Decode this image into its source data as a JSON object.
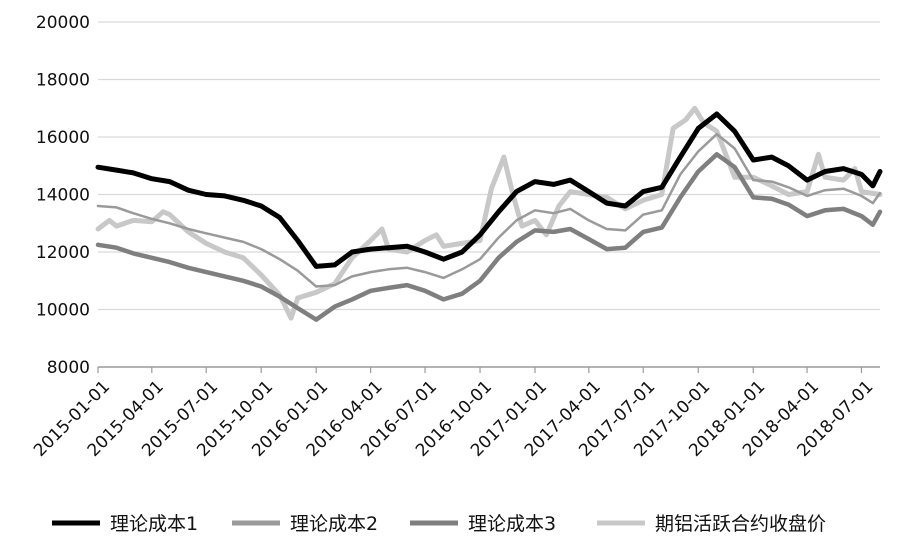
{
  "chart_data": {
    "type": "line",
    "title": "",
    "xlabel": "",
    "ylabel": "",
    "ylim": [
      8000,
      20000
    ],
    "yticks": [
      8000,
      10000,
      12000,
      14000,
      16000,
      18000,
      20000
    ],
    "xlim": [
      "2015-01-01",
      "2018-08-01"
    ],
    "xticks": [
      "2015-01-01",
      "2015-04-01",
      "2015-07-01",
      "2015-10-01",
      "2016-01-01",
      "2016-04-01",
      "2016-07-01",
      "2016-10-01",
      "2017-01-01",
      "2017-04-01",
      "2017-07-01",
      "2017-10-01",
      "2018-01-01",
      "2018-04-01",
      "2018-07-01"
    ],
    "grid": "horizontal",
    "legend_position": "bottom",
    "series": [
      {
        "name": "理论成本1",
        "color": "#000000",
        "points": [
          [
            "2015-01-01",
            14950
          ],
          [
            "2015-02-01",
            14850
          ],
          [
            "2015-03-01",
            14750
          ],
          [
            "2015-04-01",
            14550
          ],
          [
            "2015-05-01",
            14450
          ],
          [
            "2015-06-01",
            14150
          ],
          [
            "2015-07-01",
            14000
          ],
          [
            "2015-08-01",
            13950
          ],
          [
            "2015-09-01",
            13800
          ],
          [
            "2015-10-01",
            13600
          ],
          [
            "2015-11-01",
            13200
          ],
          [
            "2015-12-01",
            12400
          ],
          [
            "2016-01-01",
            11500
          ],
          [
            "2016-02-01",
            11550
          ],
          [
            "2016-03-01",
            12000
          ],
          [
            "2016-04-01",
            12100
          ],
          [
            "2016-05-01",
            12150
          ],
          [
            "2016-06-01",
            12200
          ],
          [
            "2016-07-01",
            12000
          ],
          [
            "2016-08-01",
            11750
          ],
          [
            "2016-09-01",
            12000
          ],
          [
            "2016-10-01",
            12600
          ],
          [
            "2016-11-01",
            13400
          ],
          [
            "2016-12-01",
            14100
          ],
          [
            "2017-01-01",
            14450
          ],
          [
            "2017-02-01",
            14350
          ],
          [
            "2017-03-01",
            14500
          ],
          [
            "2017-04-01",
            14100
          ],
          [
            "2017-05-01",
            13700
          ],
          [
            "2017-06-01",
            13600
          ],
          [
            "2017-07-01",
            14100
          ],
          [
            "2017-08-01",
            14250
          ],
          [
            "2017-09-01",
            15300
          ],
          [
            "2017-10-01",
            16300
          ],
          [
            "2017-11-01",
            16800
          ],
          [
            "2017-12-01",
            16200
          ],
          [
            "2018-01-01",
            15200
          ],
          [
            "2018-02-01",
            15300
          ],
          [
            "2018-03-01",
            15000
          ],
          [
            "2018-04-01",
            14500
          ],
          [
            "2018-05-01",
            14800
          ],
          [
            "2018-06-01",
            14900
          ],
          [
            "2018-07-01",
            14700
          ],
          [
            "2018-07-20",
            14300
          ],
          [
            "2018-08-01",
            14800
          ]
        ]
      },
      {
        "name": "理论成本2",
        "color": "#9a9a9a",
        "points": [
          [
            "2015-01-01",
            13600
          ],
          [
            "2015-02-01",
            13550
          ],
          [
            "2015-03-01",
            13350
          ],
          [
            "2015-04-01",
            13150
          ],
          [
            "2015-05-01",
            13000
          ],
          [
            "2015-06-01",
            12800
          ],
          [
            "2015-07-01",
            12650
          ],
          [
            "2015-08-01",
            12500
          ],
          [
            "2015-09-01",
            12350
          ],
          [
            "2015-10-01",
            12100
          ],
          [
            "2015-11-01",
            11750
          ],
          [
            "2015-12-01",
            11350
          ],
          [
            "2016-01-01",
            10800
          ],
          [
            "2016-02-01",
            10850
          ],
          [
            "2016-03-01",
            11150
          ],
          [
            "2016-04-01",
            11300
          ],
          [
            "2016-05-01",
            11400
          ],
          [
            "2016-06-01",
            11450
          ],
          [
            "2016-07-01",
            11300
          ],
          [
            "2016-08-01",
            11100
          ],
          [
            "2016-09-01",
            11400
          ],
          [
            "2016-10-01",
            11750
          ],
          [
            "2016-11-01",
            12500
          ],
          [
            "2016-12-01",
            13100
          ],
          [
            "2017-01-01",
            13450
          ],
          [
            "2017-02-01",
            13350
          ],
          [
            "2017-03-01",
            13500
          ],
          [
            "2017-04-01",
            13100
          ],
          [
            "2017-05-01",
            12800
          ],
          [
            "2017-06-01",
            12750
          ],
          [
            "2017-07-01",
            13300
          ],
          [
            "2017-08-01",
            13450
          ],
          [
            "2017-09-01",
            14700
          ],
          [
            "2017-10-01",
            15500
          ],
          [
            "2017-11-01",
            16100
          ],
          [
            "2017-12-01",
            15600
          ],
          [
            "2018-01-01",
            14500
          ],
          [
            "2018-02-01",
            14450
          ],
          [
            "2018-03-01",
            14250
          ],
          [
            "2018-04-01",
            13950
          ],
          [
            "2018-05-01",
            14150
          ],
          [
            "2018-06-01",
            14200
          ],
          [
            "2018-07-01",
            13950
          ],
          [
            "2018-07-20",
            13700
          ],
          [
            "2018-08-01",
            14050
          ]
        ]
      },
      {
        "name": "理论成本3",
        "color": "#7f7f7f",
        "points": [
          [
            "2015-01-01",
            12250
          ],
          [
            "2015-02-01",
            12150
          ],
          [
            "2015-03-01",
            11950
          ],
          [
            "2015-04-01",
            11800
          ],
          [
            "2015-05-01",
            11650
          ],
          [
            "2015-06-01",
            11450
          ],
          [
            "2015-07-01",
            11300
          ],
          [
            "2015-08-01",
            11150
          ],
          [
            "2015-09-01",
            11000
          ],
          [
            "2015-10-01",
            10800
          ],
          [
            "2015-11-01",
            10450
          ],
          [
            "2015-12-01",
            10050
          ],
          [
            "2016-01-01",
            9650
          ],
          [
            "2016-02-01",
            10100
          ],
          [
            "2016-03-01",
            10350
          ],
          [
            "2016-04-01",
            10650
          ],
          [
            "2016-05-01",
            10750
          ],
          [
            "2016-06-01",
            10850
          ],
          [
            "2016-07-01",
            10650
          ],
          [
            "2016-08-01",
            10350
          ],
          [
            "2016-09-01",
            10550
          ],
          [
            "2016-10-01",
            11000
          ],
          [
            "2016-11-01",
            11800
          ],
          [
            "2016-12-01",
            12350
          ],
          [
            "2017-01-01",
            12750
          ],
          [
            "2017-02-01",
            12700
          ],
          [
            "2017-03-01",
            12800
          ],
          [
            "2017-04-01",
            12450
          ],
          [
            "2017-05-01",
            12100
          ],
          [
            "2017-06-01",
            12150
          ],
          [
            "2017-07-01",
            12700
          ],
          [
            "2017-08-01",
            12850
          ],
          [
            "2017-09-01",
            13900
          ],
          [
            "2017-10-01",
            14800
          ],
          [
            "2017-11-01",
            15400
          ],
          [
            "2017-12-01",
            14950
          ],
          [
            "2018-01-01",
            13900
          ],
          [
            "2018-02-01",
            13850
          ],
          [
            "2018-03-01",
            13650
          ],
          [
            "2018-04-01",
            13250
          ],
          [
            "2018-05-01",
            13450
          ],
          [
            "2018-06-01",
            13500
          ],
          [
            "2018-07-01",
            13250
          ],
          [
            "2018-07-20",
            12950
          ],
          [
            "2018-08-01",
            13400
          ]
        ]
      },
      {
        "name": "期铝活跃合约收盘价",
        "color": "#c8c8c8",
        "points": [
          [
            "2015-01-01",
            12800
          ],
          [
            "2015-01-20",
            13100
          ],
          [
            "2015-02-01",
            12900
          ],
          [
            "2015-03-01",
            13100
          ],
          [
            "2015-04-01",
            13050
          ],
          [
            "2015-04-20",
            13400
          ],
          [
            "2015-05-01",
            13300
          ],
          [
            "2015-06-01",
            12700
          ],
          [
            "2015-07-01",
            12300
          ],
          [
            "2015-08-01",
            12000
          ],
          [
            "2015-09-01",
            11800
          ],
          [
            "2015-10-01",
            11200
          ],
          [
            "2015-11-01",
            10500
          ],
          [
            "2015-11-20",
            9700
          ],
          [
            "2015-12-01",
            10400
          ],
          [
            "2016-01-01",
            10600
          ],
          [
            "2016-02-01",
            10900
          ],
          [
            "2016-03-01",
            11800
          ],
          [
            "2016-04-01",
            12400
          ],
          [
            "2016-04-20",
            12800
          ],
          [
            "2016-05-01",
            12100
          ],
          [
            "2016-06-01",
            12000
          ],
          [
            "2016-07-01",
            12400
          ],
          [
            "2016-07-20",
            12600
          ],
          [
            "2016-08-01",
            12200
          ],
          [
            "2016-09-01",
            12300
          ],
          [
            "2016-10-01",
            12400
          ],
          [
            "2016-10-20",
            14200
          ],
          [
            "2016-11-10",
            15300
          ],
          [
            "2016-11-25",
            14000
          ],
          [
            "2016-12-10",
            12900
          ],
          [
            "2017-01-01",
            13100
          ],
          [
            "2017-01-20",
            12600
          ],
          [
            "2017-02-10",
            13600
          ],
          [
            "2017-03-01",
            14100
          ],
          [
            "2017-04-01",
            14000
          ],
          [
            "2017-05-01",
            13900
          ],
          [
            "2017-06-01",
            13500
          ],
          [
            "2017-07-01",
            13800
          ],
          [
            "2017-08-01",
            14000
          ],
          [
            "2017-08-20",
            16300
          ],
          [
            "2017-09-10",
            16600
          ],
          [
            "2017-09-25",
            17000
          ],
          [
            "2017-10-10",
            16500
          ],
          [
            "2017-11-01",
            16200
          ],
          [
            "2017-12-01",
            14600
          ],
          [
            "2018-01-01",
            14600
          ],
          [
            "2018-02-01",
            14300
          ],
          [
            "2018-03-01",
            14000
          ],
          [
            "2018-04-01",
            14100
          ],
          [
            "2018-04-20",
            15400
          ],
          [
            "2018-05-01",
            14600
          ],
          [
            "2018-06-01",
            14500
          ],
          [
            "2018-06-20",
            14900
          ],
          [
            "2018-07-01",
            14100
          ],
          [
            "2018-08-01",
            14000
          ]
        ]
      }
    ]
  }
}
